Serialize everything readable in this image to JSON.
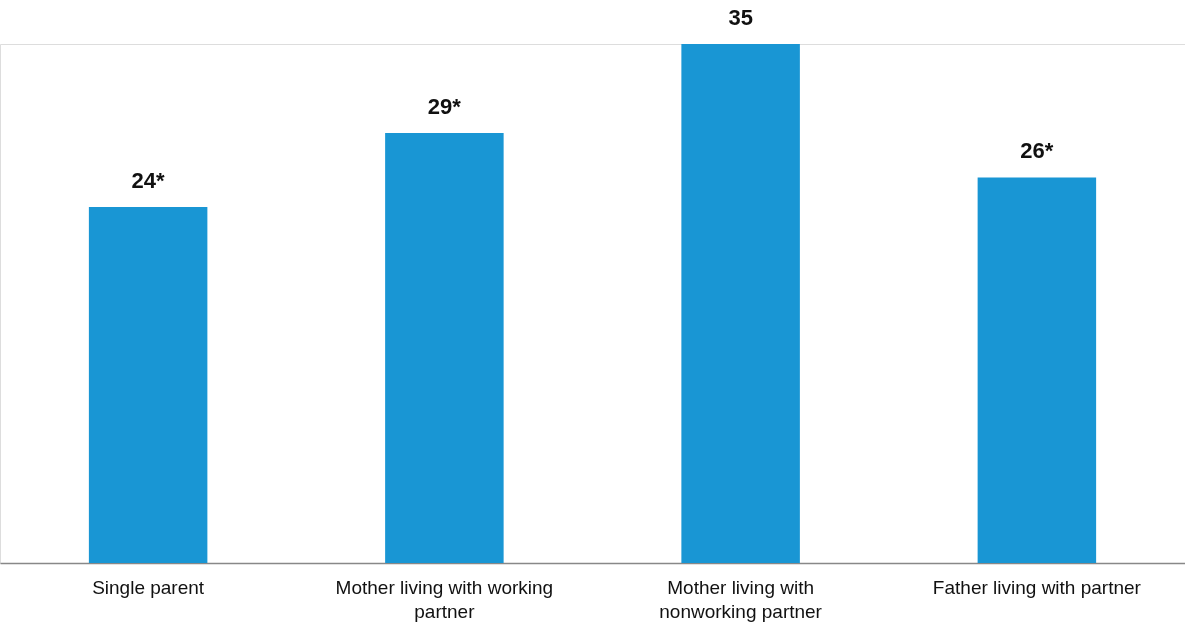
{
  "chart_data": {
    "type": "bar",
    "categories": [
      "Single parent",
      "Mother living with working partner",
      "Mother living with nonworking partner",
      "Father living with partner"
    ],
    "values": [
      24,
      29,
      35,
      26
    ],
    "value_labels": [
      "24*",
      "29*",
      "35",
      "26*"
    ],
    "color": "#1996d4"
  }
}
